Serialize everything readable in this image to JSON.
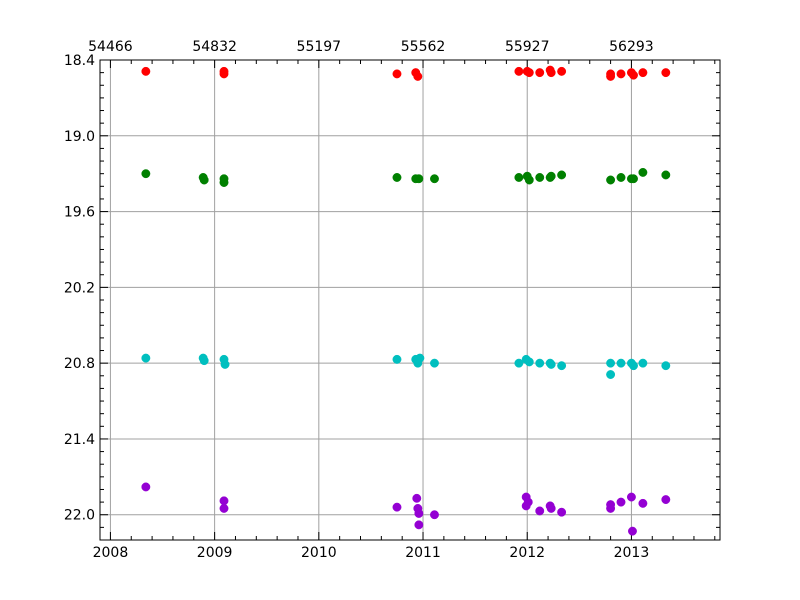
{
  "chart_data": {
    "type": "scatter",
    "title": "",
    "xlabel": "",
    "ylabel": "",
    "xlim": [
      2007.9,
      2013.85
    ],
    "ylim": [
      22.2,
      18.4
    ],
    "y_inverted": true,
    "grid": true,
    "x_ticks": [
      "2008",
      "2009",
      "2010",
      "2011",
      "2012",
      "2013"
    ],
    "x_tick_values": [
      2008,
      2009,
      2010,
      2011,
      2012,
      2013
    ],
    "top_ticks": [
      "54466",
      "54832",
      "55197",
      "55562",
      "55927",
      "56293"
    ],
    "y_ticks": [
      "18.4",
      "19.0",
      "19.6",
      "20.2",
      "20.8",
      "21.4",
      "22.0"
    ],
    "y_tick_values": [
      18.4,
      19.0,
      19.6,
      20.2,
      20.8,
      21.4,
      22.0
    ],
    "series": [
      {
        "color": "#ff0000",
        "x": [
          2008.34,
          2009.09,
          2009.09,
          2010.75,
          2010.93,
          2010.95,
          2011.92,
          2012.0,
          2012.02,
          2012.12,
          2012.22,
          2012.23,
          2012.33,
          2012.8,
          2012.8,
          2012.9,
          2013.0,
          2013.02,
          2013.11,
          2013.33
        ],
        "y": [
          18.49,
          18.49,
          18.51,
          18.51,
          18.5,
          18.53,
          18.49,
          18.49,
          18.5,
          18.5,
          18.48,
          18.5,
          18.49,
          18.51,
          18.53,
          18.51,
          18.5,
          18.52,
          18.5,
          18.5
        ]
      },
      {
        "color": "#008000",
        "x": [
          2008.34,
          2008.89,
          2008.9,
          2009.09,
          2009.09,
          2010.75,
          2010.93,
          2010.96,
          2011.11,
          2011.92,
          2012.0,
          2012.02,
          2012.12,
          2012.22,
          2012.23,
          2012.33,
          2012.8,
          2012.9,
          2013.0,
          2013.02,
          2013.11,
          2013.33
        ],
        "y": [
          19.3,
          19.33,
          19.35,
          19.34,
          19.37,
          19.33,
          19.34,
          19.34,
          19.34,
          19.33,
          19.32,
          19.35,
          19.33,
          19.33,
          19.32,
          19.31,
          19.35,
          19.33,
          19.34,
          19.34,
          19.29,
          19.31
        ]
      },
      {
        "color": "#00bfbf",
        "x": [
          2008.34,
          2008.89,
          2008.9,
          2009.09,
          2009.1,
          2010.75,
          2010.93,
          2010.95,
          2010.97,
          2011.11,
          2011.92,
          2011.99,
          2012.02,
          2012.12,
          2012.22,
          2012.23,
          2012.33,
          2012.8,
          2012.8,
          2012.9,
          2013.0,
          2013.02,
          2013.11,
          2013.33
        ],
        "y": [
          20.76,
          20.76,
          20.78,
          20.77,
          20.81,
          20.77,
          20.77,
          20.8,
          20.76,
          20.8,
          20.8,
          20.77,
          20.79,
          20.8,
          20.8,
          20.81,
          20.82,
          20.8,
          20.89,
          20.8,
          20.8,
          20.82,
          20.8,
          20.82
        ]
      },
      {
        "color": "#9400d3",
        "x": [
          2008.34,
          2009.09,
          2009.09,
          2010.75,
          2010.94,
          2010.95,
          2010.96,
          2010.96,
          2011.11,
          2011.99,
          2011.99,
          2012.01,
          2012.12,
          2012.22,
          2012.23,
          2012.33,
          2012.8,
          2012.8,
          2012.9,
          2013.0,
          2013.01,
          2013.11,
          2013.33
        ],
        "y": [
          21.78,
          21.89,
          21.95,
          21.94,
          21.87,
          21.95,
          21.99,
          22.08,
          22.0,
          21.86,
          21.93,
          21.9,
          21.97,
          21.93,
          21.95,
          21.98,
          21.92,
          21.95,
          21.9,
          21.86,
          22.13,
          21.91,
          21.88
        ]
      }
    ]
  }
}
